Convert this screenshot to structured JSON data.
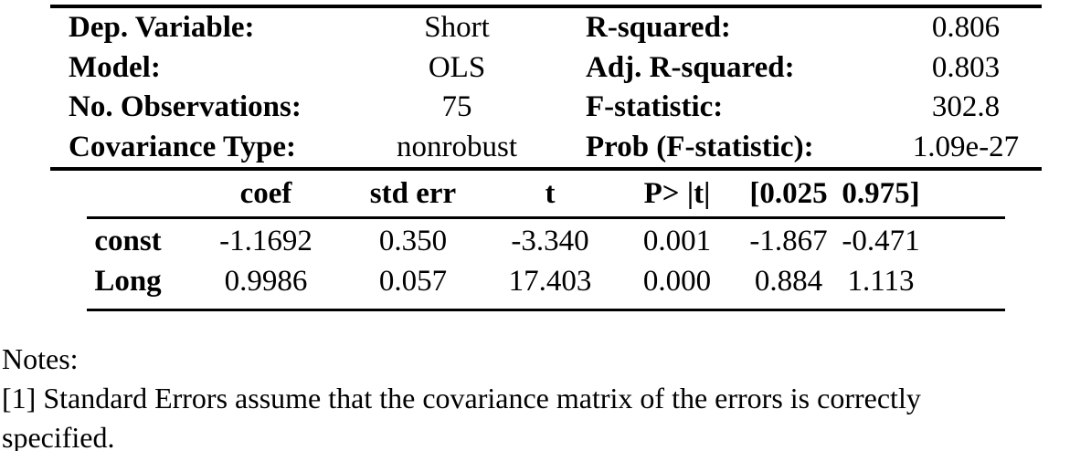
{
  "summary_table": {
    "info_rows": [
      {
        "left_label": "Dep. Variable:",
        "left_value": "Short",
        "right_label": "R-squared:",
        "right_value": "0.806"
      },
      {
        "left_label": "Model:",
        "left_value": "OLS",
        "right_label": "Adj. R-squared:",
        "right_value": "0.803"
      },
      {
        "left_label": "No. Observations:",
        "left_value": "75",
        "right_label": "F-statistic:",
        "right_value": "302.8"
      },
      {
        "left_label": "Covariance Type:",
        "left_value": "nonrobust",
        "right_label": "Prob (F-statistic):",
        "right_value": "1.09e-27"
      }
    ],
    "coef_table": {
      "headers": [
        "coef",
        "std err",
        "t",
        "P> |t|",
        "[0.025",
        "0.975]"
      ],
      "rows": [
        {
          "label": "const",
          "values": [
            "-1.1692",
            "0.350",
            "-3.340",
            "0.001",
            "-1.867",
            "-0.471"
          ]
        },
        {
          "label": "Long",
          "values": [
            "0.9986",
            "0.057",
            "17.403",
            "0.000",
            "0.884",
            "1.113"
          ]
        }
      ]
    }
  },
  "notes": {
    "lines": [
      "Notes:",
      "[1] Standard Errors assume that the covariance matrix of the errors is correctly",
      "specified."
    ]
  },
  "colors": {
    "text": "#000000",
    "background": "#ffffff",
    "rule": "#000000"
  }
}
